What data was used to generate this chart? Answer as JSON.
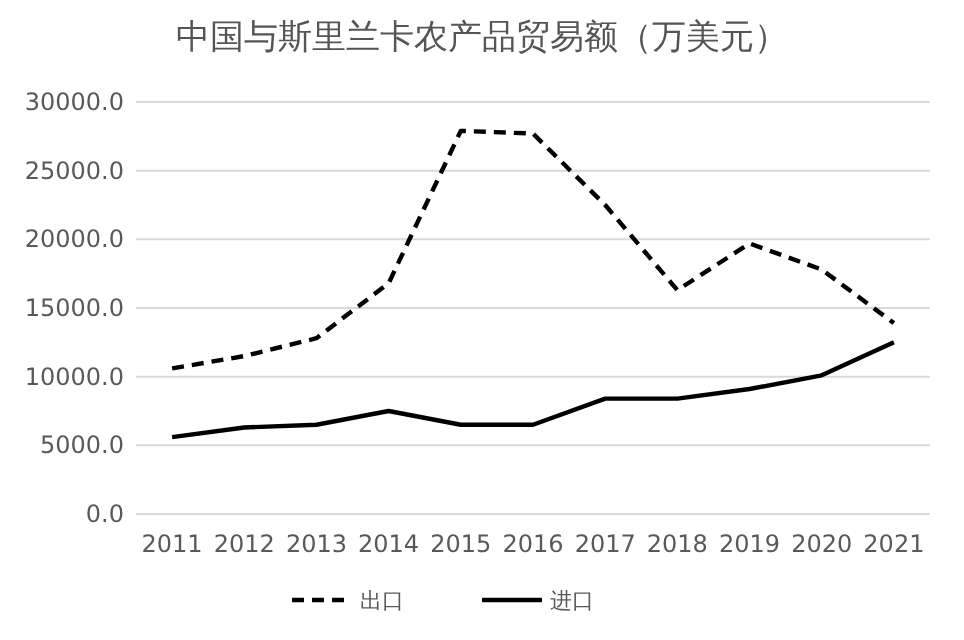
{
  "chart_data": {
    "type": "line",
    "title": "中国与斯里兰卡农产品贸易额（万美元）",
    "categories": [
      "2011",
      "2012",
      "2013",
      "2014",
      "2015",
      "2016",
      "2017",
      "2018",
      "2019",
      "2020",
      "2021"
    ],
    "series": [
      {
        "name": "出口",
        "color": "#000000",
        "line_style": "dashed",
        "values": [
          10600,
          11500,
          12800,
          16800,
          27900,
          27700,
          22500,
          16300,
          19700,
          17800,
          13900
        ]
      },
      {
        "name": "进口",
        "color": "#000000",
        "line_style": "solid",
        "values": [
          5600,
          6300,
          6500,
          7500,
          6500,
          6500,
          8400,
          8400,
          9100,
          10100,
          12500
        ]
      }
    ],
    "ylim": [
      0,
      30000
    ],
    "yticks": [
      {
        "value": 0,
        "label": "0.0"
      },
      {
        "value": 5000,
        "label": "5000.0"
      },
      {
        "value": 10000,
        "label": "10000.0"
      },
      {
        "value": 15000,
        "label": "15000.0"
      },
      {
        "value": 20000,
        "label": "20000.0"
      },
      {
        "value": 25000,
        "label": "25000.0"
      },
      {
        "value": 30000,
        "label": "30000.0"
      }
    ],
    "grid": "y",
    "legend": "bottom",
    "marker": "none"
  }
}
